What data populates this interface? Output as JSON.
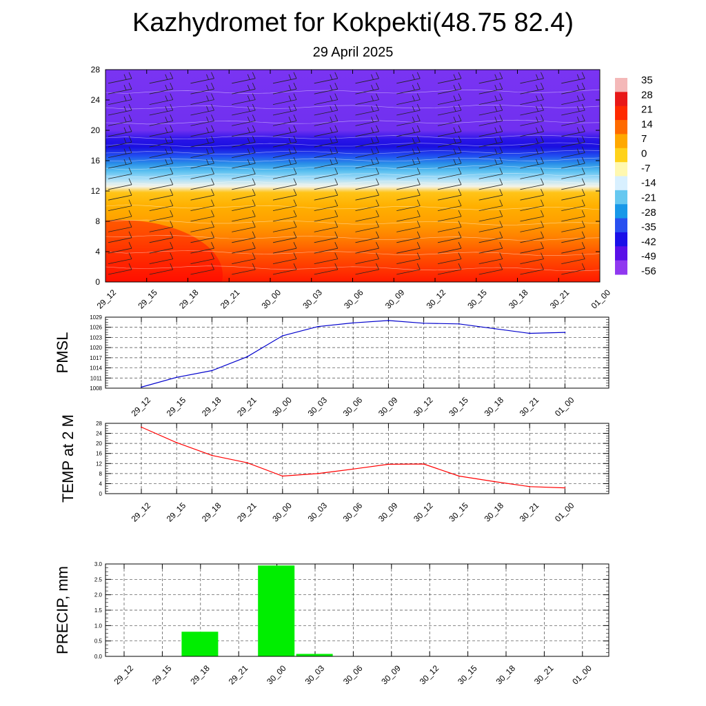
{
  "title": "Kazhydromet for Kokpekti(48.75 82.4)",
  "subtitle": "29 April 2025",
  "time_labels": [
    "29_12",
    "29_15",
    "29_18",
    "29_21",
    "30_00",
    "30_03",
    "30_06",
    "30_09",
    "30_12",
    "30_15",
    "30_18",
    "30_21",
    "01_00"
  ],
  "chart_data": [
    {
      "type": "heatmap",
      "title": "",
      "ylabel": "",
      "ylim": [
        0,
        28
      ],
      "yticks": [
        0,
        4,
        8,
        12,
        16,
        20,
        24,
        28
      ],
      "overlay": "wind barbs",
      "colorbar": {
        "labels": [
          "35",
          "28",
          "21",
          "14",
          "7",
          "0",
          "-7",
          "-14",
          "-21",
          "-28",
          "-35",
          "-42",
          "-49",
          "-56"
        ],
        "colors": [
          "#f4b8b8",
          "#e81818",
          "#ff2a00",
          "#ff6a00",
          "#ffa800",
          "#ffd21a",
          "#fff8b0",
          "#d8f0ff",
          "#66c8f0",
          "#1898e8",
          "#2850f0",
          "#1a10e8",
          "#5a10e8",
          "#9038f0"
        ]
      },
      "levels": [
        {
          "z": 0,
          "color": "#ff1a00"
        },
        {
          "z": 2,
          "color": "#ff3a00"
        },
        {
          "z": 4,
          "color": "#ff5a00"
        },
        {
          "z": 6,
          "color": "#ff8200"
        },
        {
          "z": 8,
          "color": "#ffa000"
        },
        {
          "z": 10,
          "color": "#ffb000"
        },
        {
          "z": 11.8,
          "color": "#ffc418"
        },
        {
          "z": 12.6,
          "color": "#f4f4e8"
        },
        {
          "z": 13.6,
          "color": "#a8def8"
        },
        {
          "z": 14.6,
          "color": "#5ac0f0"
        },
        {
          "z": 15.6,
          "color": "#2a90e8"
        },
        {
          "z": 16.6,
          "color": "#2050f0"
        },
        {
          "z": 17.8,
          "color": "#1a10e0"
        },
        {
          "z": 18.8,
          "color": "#2a14e8"
        },
        {
          "z": 20,
          "color": "#7030f0"
        },
        {
          "z": 28,
          "color": "#7a34f2"
        }
      ]
    },
    {
      "type": "line",
      "ylabel": "PMSL",
      "ylim": [
        1008,
        1029
      ],
      "yticks": [
        1008,
        1011,
        1014,
        1017,
        1020,
        1023,
        1026,
        1029
      ],
      "color": "#0000cc",
      "x": [
        "29_12",
        "29_15",
        "29_18",
        "29_21",
        "30_00",
        "30_03",
        "30_06",
        "30_09",
        "30_12",
        "30_15",
        "30_18",
        "30_21",
        "01_00"
      ],
      "values": [
        1008.3,
        1011.2,
        1013.2,
        1017.3,
        1023.5,
        1026.2,
        1027.3,
        1028.0,
        1027.2,
        1027.0,
        1025.6,
        1024.2,
        1024.5
      ]
    },
    {
      "type": "line",
      "ylabel": "TEMP at 2 M",
      "ylim": [
        0,
        28
      ],
      "yticks": [
        0,
        4,
        8,
        12,
        16,
        20,
        24,
        28
      ],
      "color": "#ff0000",
      "x": [
        "29_12",
        "29_15",
        "29_18",
        "29_21",
        "30_00",
        "30_03",
        "30_06",
        "30_09",
        "30_12",
        "30_15",
        "30_18",
        "30_21",
        "01_00"
      ],
      "values": [
        26.5,
        20.3,
        15.2,
        12.3,
        7.0,
        8.0,
        9.8,
        11.7,
        11.8,
        7.0,
        4.8,
        2.8,
        2.3
      ]
    },
    {
      "type": "bar",
      "ylabel": "PRECIP, mm",
      "ylim": [
        0,
        3.0
      ],
      "yticks": [
        "0.0",
        "0.5",
        "1.0",
        "1.5",
        "2.0",
        "2.5",
        "3.0"
      ],
      "color": "#00ee00",
      "categories": [
        "29_12",
        "29_15",
        "29_18",
        "29_21",
        "30_00",
        "30_03",
        "30_06",
        "30_09",
        "30_12",
        "30_15",
        "30_18",
        "30_21",
        "01_00"
      ],
      "values": [
        0,
        0.8,
        0,
        2.95,
        0.08,
        0,
        0,
        0,
        0,
        0,
        0,
        0,
        0
      ]
    }
  ]
}
